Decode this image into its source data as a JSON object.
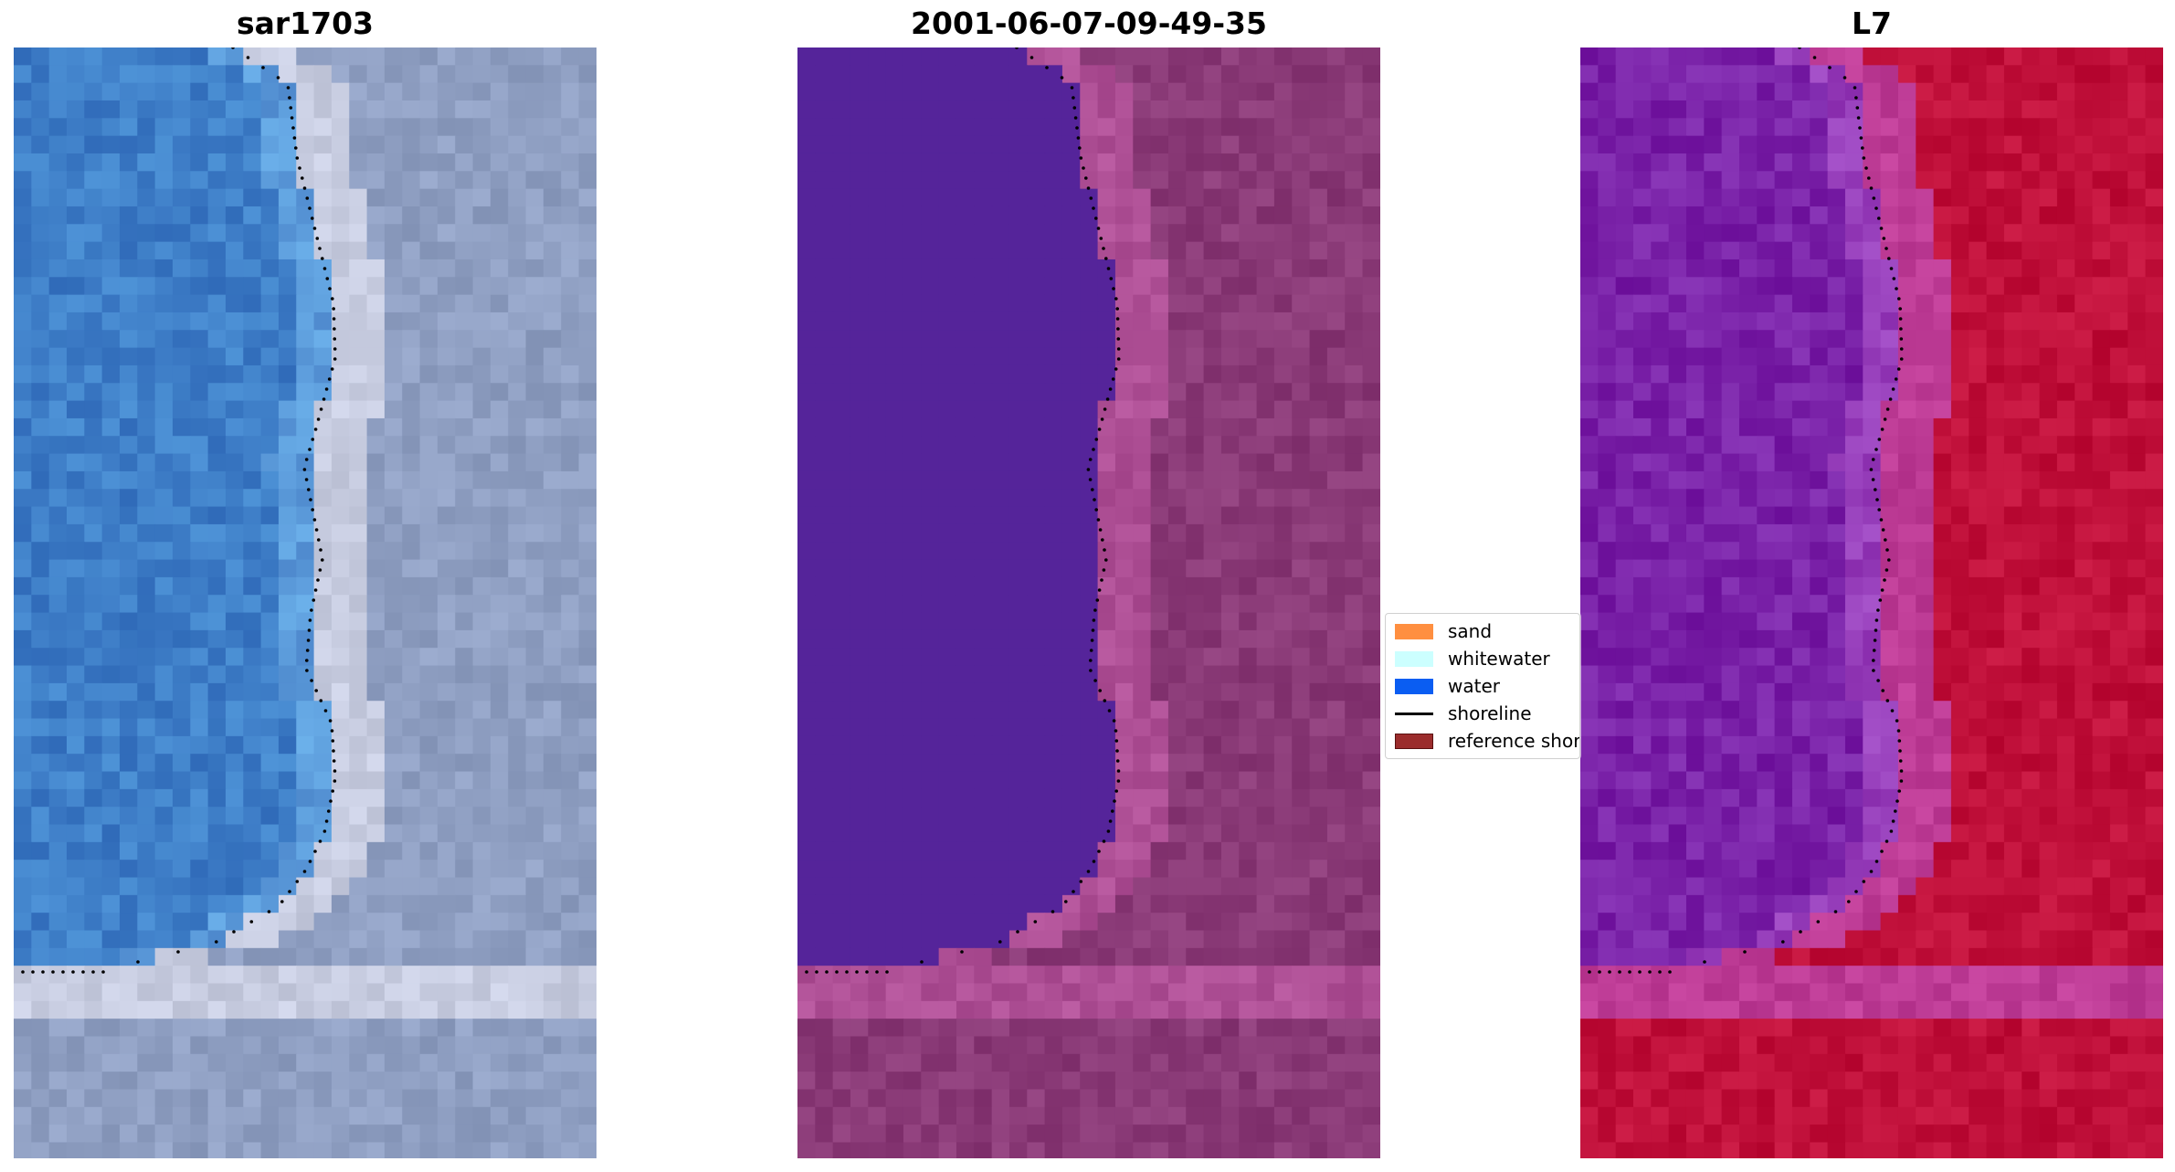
{
  "panels": [
    {
      "title": "sar1703",
      "style": "rgb"
    },
    {
      "title": "2001-06-07-09-49-35",
      "style": "classified"
    },
    {
      "title": "L7",
      "style": "index"
    }
  ],
  "legend": {
    "items": [
      {
        "label": "sand",
        "color": "#ff8f40",
        "kind": "patch"
      },
      {
        "label": "whitewater",
        "color": "#ccffff",
        "kind": "patch"
      },
      {
        "label": "water",
        "color": "#0a5df2",
        "kind": "patch"
      },
      {
        "label": "shoreline",
        "color": "#000000",
        "kind": "line"
      },
      {
        "label": "reference shoreline",
        "color": "#9b2c2c",
        "kind": "patch"
      }
    ]
  },
  "colors": {
    "water_class": "#55249a",
    "land_class": "#8a3a77",
    "rgb_water": "#3f7fc8",
    "rgb_land": "#8f9fc2",
    "index_water": "#7a22a8",
    "index_land": "#c0103a"
  }
}
